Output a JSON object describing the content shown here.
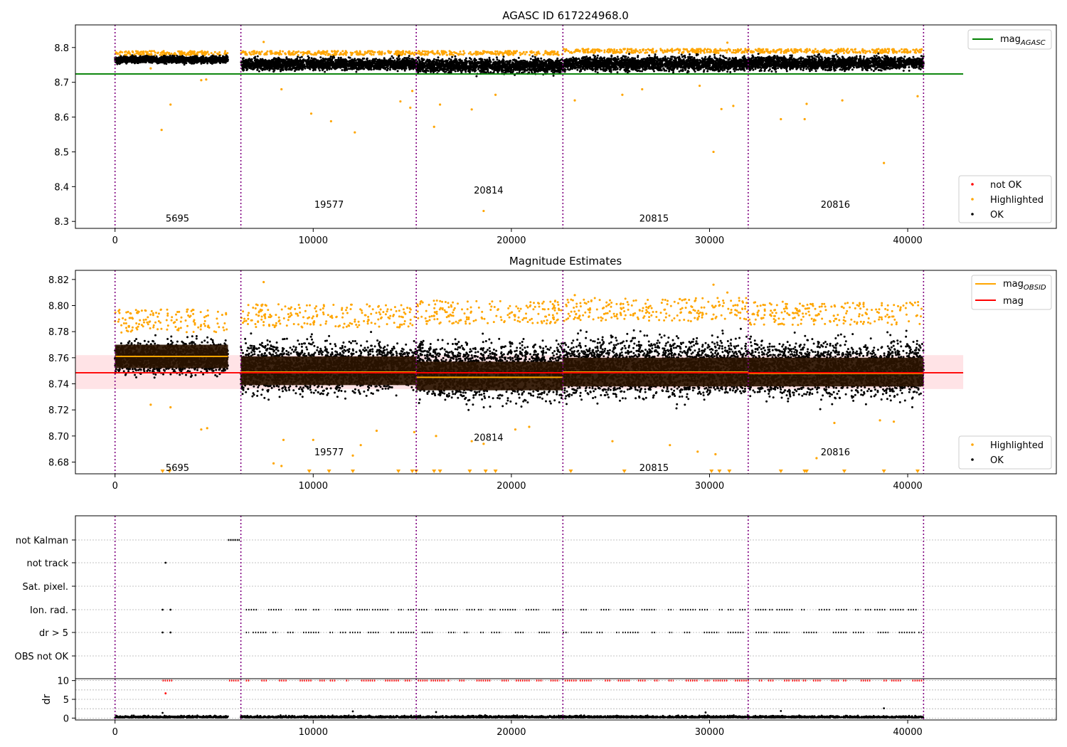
{
  "chart_data": [
    {
      "type": "scatter",
      "title": "AGASC ID 617224968.0",
      "xlim": [
        -2000,
        47500
      ],
      "ylim": [
        8.28,
        8.865
      ],
      "yticks": [
        "8.3",
        "8.4",
        "8.5",
        "8.6",
        "8.7",
        "8.8"
      ],
      "xticks": [
        "0",
        "10000",
        "20000",
        "30000",
        "40000"
      ],
      "grid": false,
      "mag_agasc": 8.724,
      "obs_boundaries": [
        0,
        6350,
        15200,
        22600,
        31950,
        40800
      ],
      "obsid_labels": [
        {
          "text": "5695",
          "x": 3150,
          "y": 8.31
        },
        {
          "text": "19577",
          "x": 10800,
          "y": 8.35
        },
        {
          "text": "20814",
          "x": 18850,
          "y": 8.39
        },
        {
          "text": "20815",
          "x": 27200,
          "y": 8.31
        },
        {
          "text": "20816",
          "x": 36350,
          "y": 8.35
        }
      ],
      "series": [
        {
          "name": "OK",
          "color": "#000000",
          "description_ranges": [
            {
              "x": [
                0,
                5700
              ],
              "ymin": 8.748,
              "ymax": 8.782
            },
            {
              "x": [
                6350,
                15200
              ],
              "ymin": 8.723,
              "ymax": 8.782
            },
            {
              "x": [
                15200,
                22600
              ],
              "ymin": 8.713,
              "ymax": 8.782
            },
            {
              "x": [
                22600,
                31950
              ],
              "ymin": 8.718,
              "ymax": 8.788
            },
            {
              "x": [
                31950,
                40800
              ],
              "ymin": 8.722,
              "ymax": 8.788
            }
          ]
        },
        {
          "name": "Highlighted",
          "color": "#ffa500",
          "points": [
            [
              2350,
              8.563
            ],
            [
              2800,
              8.636
            ],
            [
              4350,
              8.706
            ],
            [
              4600,
              8.708
            ],
            [
              1800,
              8.74
            ],
            [
              8400,
              8.68
            ],
            [
              9900,
              8.61
            ],
            [
              10900,
              8.588
            ],
            [
              12100,
              8.556
            ],
            [
              14400,
              8.645
            ],
            [
              15000,
              8.675
            ],
            [
              16100,
              8.572
            ],
            [
              16400,
              8.636
            ],
            [
              18000,
              8.622
            ],
            [
              18600,
              8.33
            ],
            [
              19200,
              8.664
            ],
            [
              23200,
              8.648
            ],
            [
              25600,
              8.664
            ],
            [
              26600,
              8.68
            ],
            [
              29500,
              8.69
            ],
            [
              30200,
              8.5
            ],
            [
              30600,
              8.623
            ],
            [
              31200,
              8.632
            ],
            [
              33600,
              8.594
            ],
            [
              34800,
              8.594
            ],
            [
              34900,
              8.638
            ],
            [
              36700,
              8.648
            ],
            [
              38800,
              8.468
            ],
            [
              40500,
              8.66
            ],
            [
              7500,
              8.816
            ],
            [
              30900,
              8.814
            ],
            [
              14900,
              8.627
            ]
          ]
        },
        {
          "name": "not OK",
          "color": "#ff0000",
          "points": []
        }
      ],
      "legend": {
        "upper": {
          "placement": "top-right",
          "entries": [
            "mag_AGASC"
          ]
        },
        "lower": {
          "placement": "bottom-right",
          "entries": [
            "not OK",
            "Highlighted",
            "OK"
          ]
        }
      }
    },
    {
      "type": "scatter",
      "title": "Magnitude Estimates",
      "xlim": [
        -2000,
        47500
      ],
      "ylim": [
        8.671,
        8.827
      ],
      "yticks": [
        "8.68",
        "8.70",
        "8.72",
        "8.74",
        "8.76",
        "8.78",
        "8.80",
        "8.82"
      ],
      "xticks": [
        "0",
        "10000",
        "20000",
        "30000",
        "40000"
      ],
      "grid": false,
      "mag": 8.7485,
      "mag_band": [
        8.736,
        8.762
      ],
      "mag_obsid": [
        {
          "x": [
            0,
            5700
          ],
          "y": 8.761
        },
        {
          "x": [
            6350,
            15200
          ],
          "y": 8.749
        },
        {
          "x": [
            15200,
            22600
          ],
          "y": 8.745
        },
        {
          "x": [
            22600,
            31950
          ],
          "y": 8.749
        },
        {
          "x": [
            31950,
            40800
          ],
          "y": 8.748
        }
      ],
      "obsid_labels": [
        {
          "text": "5695",
          "x": 3150,
          "y": 8.676
        },
        {
          "text": "19577",
          "x": 10800,
          "y": 8.688
        },
        {
          "text": "20814",
          "x": 18850,
          "y": 8.699
        },
        {
          "text": "20815",
          "x": 27200,
          "y": 8.676
        },
        {
          "text": "20816",
          "x": 36350,
          "y": 8.688
        }
      ],
      "series": [
        {
          "name": "OK",
          "color": "#000000",
          "description_ranges": [
            {
              "x": [
                0,
                5700
              ],
              "ymin": 8.739,
              "ymax": 8.781
            },
            {
              "x": [
                6350,
                15200
              ],
              "ymin": 8.72,
              "ymax": 8.785
            },
            {
              "x": [
                15200,
                22600
              ],
              "ymin": 8.712,
              "ymax": 8.788
            },
            {
              "x": [
                22600,
                31950
              ],
              "ymin": 8.715,
              "ymax": 8.79
            },
            {
              "x": [
                31950,
                40800
              ],
              "ymin": 8.716,
              "ymax": 8.787
            }
          ]
        },
        {
          "name": "Highlighted",
          "color": "#ffa500",
          "points": [
            [
              7500,
              8.818
            ],
            [
              1800,
              8.724
            ],
            [
              2800,
              8.722
            ],
            [
              4350,
              8.705
            ],
            [
              4650,
              8.706
            ],
            [
              8500,
              8.697
            ],
            [
              10000,
              8.697
            ],
            [
              12000,
              8.685
            ],
            [
              12400,
              8.693
            ],
            [
              13200,
              8.704
            ],
            [
              15100,
              8.703
            ],
            [
              16200,
              8.7
            ],
            [
              18000,
              8.696
            ],
            [
              18600,
              8.694
            ],
            [
              20200,
              8.705
            ],
            [
              20900,
              8.707
            ],
            [
              25100,
              8.696
            ],
            [
              28000,
              8.693
            ],
            [
              29400,
              8.688
            ],
            [
              30300,
              8.686
            ],
            [
              35400,
              8.683
            ],
            [
              36300,
              8.71
            ],
            [
              38600,
              8.712
            ],
            [
              39300,
              8.711
            ],
            [
              8000,
              8.679
            ],
            [
              8400,
              8.677
            ],
            [
              30200,
              8.816
            ],
            [
              30900,
              8.81
            ],
            [
              23200,
              8.808
            ],
            [
              28500,
              8.805
            ]
          ]
        },
        {
          "name": "Highlighted (below range)",
          "color": "#ffa500",
          "marker": "triangle-down",
          "points": [
            [
              2400,
              8.671
            ],
            [
              2750,
              8.671
            ],
            [
              9800,
              8.671
            ],
            [
              10800,
              8.671
            ],
            [
              12000,
              8.671
            ],
            [
              14300,
              8.671
            ],
            [
              15000,
              8.671
            ],
            [
              15200,
              8.671
            ],
            [
              16100,
              8.671
            ],
            [
              16400,
              8.671
            ],
            [
              17900,
              8.671
            ],
            [
              18700,
              8.671
            ],
            [
              19200,
              8.671
            ],
            [
              23000,
              8.671
            ],
            [
              25700,
              8.671
            ],
            [
              30100,
              8.671
            ],
            [
              30500,
              8.671
            ],
            [
              31000,
              8.671
            ],
            [
              33600,
              8.671
            ],
            [
              34800,
              8.671
            ],
            [
              34900,
              8.671
            ],
            [
              36800,
              8.671
            ],
            [
              38800,
              8.671
            ],
            [
              40500,
              8.671
            ]
          ]
        }
      ],
      "legend": {
        "upper": {
          "placement": "top-right",
          "entries": [
            "mag_OBSID",
            "mag"
          ]
        },
        "lower": {
          "placement": "bottom-right",
          "entries": [
            "Highlighted",
            "OK"
          ]
        }
      }
    },
    {
      "type": "scatter",
      "title": "",
      "xlim": [
        -2000,
        47500
      ],
      "categories": [
        "not Kalman",
        "not track",
        "Sat. pixel.",
        "Ion. rad.",
        "dr > 5",
        "OBS not OK"
      ],
      "xticks": [
        "0",
        "10000",
        "20000",
        "30000",
        "40000"
      ],
      "grid": true,
      "flags": [
        {
          "category": "not Kalman",
          "ranges": [
            [
              5700,
              6300
            ]
          ]
        },
        {
          "category": "not track",
          "points": [
            2550
          ]
        },
        {
          "category": "Sat. pixel.",
          "points": []
        },
        {
          "category": "Ion. rad.",
          "points": [
            2400,
            2800
          ],
          "ranges": [
            [
              6600,
              40800
            ]
          ],
          "pattern": "sporadic"
        },
        {
          "category": "dr > 5",
          "points": [
            2400,
            2800
          ],
          "ranges": [
            [
              6600,
              40800
            ]
          ],
          "pattern": "sporadic"
        },
        {
          "category": "OBS not OK",
          "points": []
        }
      ]
    },
    {
      "type": "scatter",
      "title": "",
      "ylabel": "dr",
      "xlim": [
        -2000,
        47500
      ],
      "ylim": [
        -0.5,
        10.5
      ],
      "yticks": [
        "0",
        "5",
        "10"
      ],
      "xticks": [
        "0",
        "10000",
        "20000",
        "30000",
        "40000"
      ],
      "grid": true,
      "series": [
        {
          "name": "dr",
          "color": "#000000",
          "y_range": [
            0,
            1.5
          ],
          "outliers": [
            [
              2400,
              1.4
            ],
            [
              12000,
              1.8
            ],
            [
              16200,
              1.6
            ],
            [
              29800,
              1.5
            ],
            [
              33600,
              1.9
            ],
            [
              38800,
              2.6
            ]
          ]
        },
        {
          "name": "dr > 5",
          "color": "#ff0000",
          "y": 10,
          "outliers": [
            [
              2550,
              6.6
            ]
          ]
        }
      ]
    }
  ]
}
